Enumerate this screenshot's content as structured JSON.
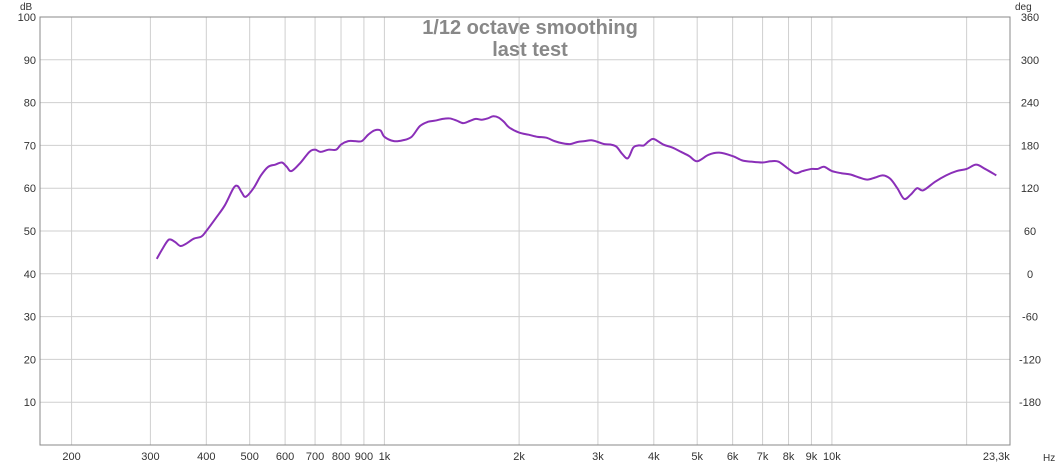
{
  "chart_data": {
    "type": "line",
    "title": "1/12 octave smoothing",
    "subtitle": "last test",
    "x_scale": "log",
    "xlim": [
      170,
      25000
    ],
    "ylim": [
      0,
      100
    ],
    "y2lim": [
      -240,
      360
    ],
    "y_unit": "dB",
    "y2_unit": "deg",
    "x_unit": "Hz",
    "grid": true,
    "x_ticks": [
      {
        "value": 200,
        "label": "200"
      },
      {
        "value": 300,
        "label": "300"
      },
      {
        "value": 400,
        "label": "400"
      },
      {
        "value": 500,
        "label": "500"
      },
      {
        "value": 600,
        "label": "600"
      },
      {
        "value": 700,
        "label": "700"
      },
      {
        "value": 800,
        "label": "800"
      },
      {
        "value": 900,
        "label": "900"
      },
      {
        "value": 1000,
        "label": "1k"
      },
      {
        "value": 2000,
        "label": "2k"
      },
      {
        "value": 3000,
        "label": "3k"
      },
      {
        "value": 4000,
        "label": "4k"
      },
      {
        "value": 5000,
        "label": "5k"
      },
      {
        "value": 6000,
        "label": "6k"
      },
      {
        "value": 7000,
        "label": "7k"
      },
      {
        "value": 8000,
        "label": "8k"
      },
      {
        "value": 9000,
        "label": "9k"
      },
      {
        "value": 10000,
        "label": "10k"
      },
      {
        "value": 23300,
        "label": "23,3k"
      }
    ],
    "y_ticks": [
      10,
      20,
      30,
      40,
      50,
      60,
      70,
      80,
      90,
      100
    ],
    "y2_ticks": [
      -180,
      -120,
      -60,
      0,
      60,
      120,
      180,
      240,
      300,
      360
    ],
    "colors": {
      "series": "#8a2fb8",
      "grid": "#cfcfcf",
      "border": "#888888",
      "title": "#888888"
    },
    "series": [
      {
        "x": [
          310,
          320,
          330,
          340,
          350,
          360,
          375,
          390,
          400,
          420,
          440,
          460,
          470,
          480,
          490,
          510,
          530,
          550,
          570,
          590,
          605,
          620,
          650,
          680,
          700,
          720,
          750,
          780,
          800,
          830,
          860,
          890,
          920,
          950,
          980,
          1000,
          1050,
          1100,
          1150,
          1200,
          1250,
          1300,
          1350,
          1400,
          1450,
          1500,
          1550,
          1600,
          1650,
          1700,
          1750,
          1800,
          1850,
          1900,
          2000,
          2100,
          2200,
          2300,
          2400,
          2500,
          2600,
          2700,
          2800,
          2900,
          3000,
          3100,
          3200,
          3300,
          3400,
          3500,
          3600,
          3700,
          3800,
          3900,
          4000,
          4200,
          4400,
          4600,
          4800,
          5000,
          5300,
          5600,
          6000,
          6300,
          6600,
          7000,
          7300,
          7600,
          8000,
          8300,
          8600,
          9000,
          9300,
          9600,
          10000,
          10500,
          11000,
          11500,
          12000,
          12500,
          13000,
          13500,
          14000,
          14500,
          15000,
          15500,
          16000,
          17000,
          18000,
          19000,
          20000,
          21000,
          22000,
          23300
        ],
        "y": [
          43.5,
          46,
          48,
          47.5,
          46.5,
          47,
          48.2,
          48.7,
          50,
          53,
          56,
          60,
          60.5,
          59,
          58,
          60,
          63,
          65,
          65.5,
          66,
          65,
          64,
          66,
          68.5,
          69,
          68.5,
          69,
          69,
          70.2,
          71,
          71,
          71,
          72.5,
          73.5,
          73.5,
          72,
          71,
          71.2,
          72,
          74.5,
          75.5,
          75.8,
          76.2,
          76.3,
          75.8,
          75.2,
          75.7,
          76.2,
          76,
          76.3,
          76.8,
          76.5,
          75.5,
          74.2,
          73,
          72.5,
          72,
          71.8,
          71,
          70.5,
          70.3,
          70.8,
          71,
          71.2,
          70.8,
          70.3,
          70.2,
          69.7,
          68,
          67,
          69.5,
          70,
          70,
          71,
          71.5,
          70.2,
          69.5,
          68.5,
          67.5,
          66.3,
          67.8,
          68.3,
          67.5,
          66.5,
          66.2,
          66,
          66.3,
          66.2,
          64.5,
          63.5,
          64,
          64.5,
          64.5,
          65,
          64,
          63.5,
          63.2,
          62.5,
          62,
          62.5,
          63,
          62.2,
          60,
          57.5,
          58.5,
          60,
          59.5,
          61.5,
          63,
          64,
          64.5,
          65.5,
          64.5,
          63
        ]
      }
    ]
  }
}
